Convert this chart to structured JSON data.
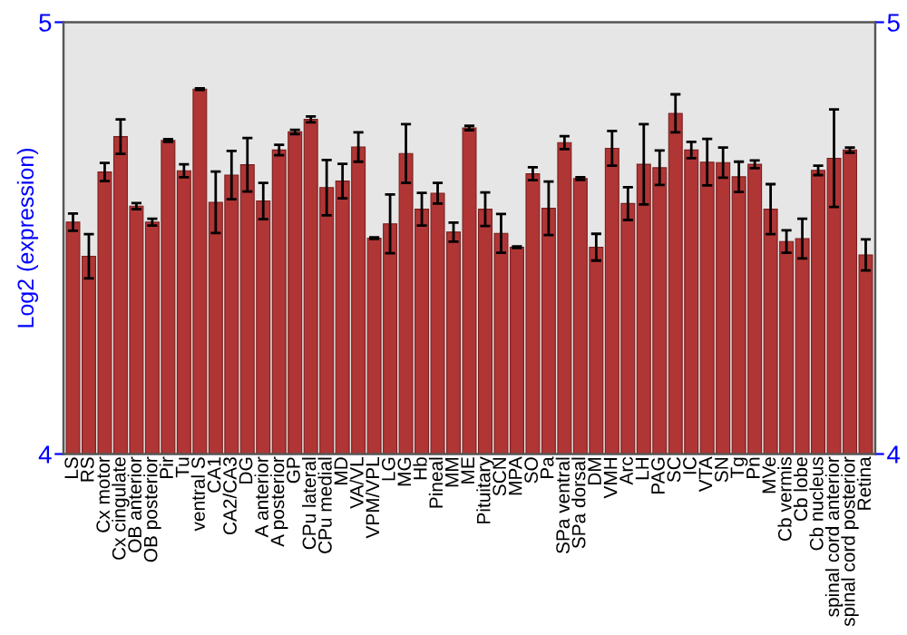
{
  "chart_data": {
    "type": "bar",
    "ylabel": "Log2 (expression)",
    "categories": [
      "LS",
      "RS",
      "Cx motor",
      "Cx cingulate",
      "OB anterior",
      "OB posterior",
      "Pir",
      "Tu",
      "ventral S",
      "CA1",
      "CA2/CA3",
      "DG",
      "A anterior",
      "A posterior",
      "GP",
      "CPu lateral",
      "CPu medial",
      "MD",
      "VA/VL",
      "VPM/VPL",
      "LG",
      "MG",
      "Hb",
      "Pineal",
      "MM",
      "ME",
      "Pituitary",
      "SCN",
      "MPA",
      "SO",
      "Pa",
      "SPa ventral",
      "SPa dorsal",
      "DM",
      "VMH",
      "Arc",
      "LH",
      "PAG",
      "SC",
      "IC",
      "VTA",
      "SN",
      "Tg",
      "Pn",
      "MVe",
      "Cb vermis",
      "Cb lobe",
      "Cb nucleus",
      "spinal cord anterior",
      "spinal cord posterior",
      "Retina"
    ],
    "values": [
      4.537,
      4.458,
      4.653,
      4.735,
      4.574,
      4.537,
      4.726,
      4.656,
      4.845,
      4.583,
      4.646,
      4.67,
      4.586,
      4.704,
      4.746,
      4.775,
      4.617,
      4.632,
      4.711,
      4.5,
      4.533,
      4.696,
      4.567,
      4.604,
      4.514,
      4.755,
      4.567,
      4.511,
      4.479,
      4.649,
      4.569,
      4.721,
      4.638,
      4.479,
      4.708,
      4.58,
      4.671,
      4.663,
      4.789,
      4.704,
      4.676,
      4.675,
      4.642,
      4.671,
      4.567,
      4.492,
      4.499,
      4.657,
      4.685,
      4.704,
      4.461
    ],
    "errors": [
      0.02,
      0.051,
      0.021,
      0.04,
      0.007,
      0.008,
      0.003,
      0.015,
      0.002,
      0.071,
      0.056,
      0.062,
      0.042,
      0.012,
      0.005,
      0.007,
      0.064,
      0.04,
      0.034,
      0.002,
      0.068,
      0.068,
      0.038,
      0.024,
      0.022,
      0.005,
      0.039,
      0.045,
      0.002,
      0.015,
      0.062,
      0.015,
      0.003,
      0.031,
      0.04,
      0.038,
      0.093,
      0.04,
      0.044,
      0.019,
      0.054,
      0.035,
      0.035,
      0.009,
      0.058,
      0.026,
      0.046,
      0.011,
      0.113,
      0.006,
      0.036
    ],
    "color": "#b03535",
    "ylim": [
      4,
      5
    ],
    "yticks": [
      4,
      5
    ],
    "y2lim": [
      4,
      5
    ],
    "y2ticks": [
      4,
      5
    ],
    "grid": false,
    "legend": false
  }
}
